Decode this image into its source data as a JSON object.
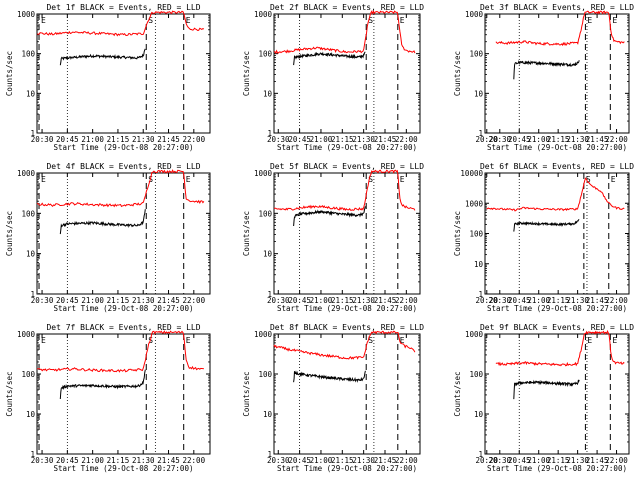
{
  "chart_data": {
    "type": "line",
    "panels": [
      {
        "title": "Det 1f BLACK = Events, RED = LLD",
        "xlabel": "Start Time (29-Oct-08 20:27:00)",
        "ylabel": "Counts/sec",
        "xlim": [
          20.45,
          22.16
        ],
        "ylim": [
          1,
          1000
        ],
        "xticks": [
          20.5,
          20.75,
          21.0,
          21.25,
          21.5,
          21.75,
          22.0
        ],
        "xtick_labels": [
          "20:30",
          "20:45",
          "21:00",
          "21:15",
          "21:30",
          "21:45",
          "22:00"
        ],
        "yticks": [
          1,
          10,
          100,
          1000
        ],
        "ytick_labels": [
          "1",
          "10",
          "100",
          "1000"
        ],
        "flags": [
          {
            "label": "E",
            "x": 20.47
          },
          {
            "label": "S",
            "x": 21.53
          },
          {
            "label": "E",
            "x": 21.9
          }
        ],
        "series": [
          {
            "name": "Events",
            "color": "#000000",
            "x": [
              20.68,
              20.69,
              20.75,
              21.0,
              21.25,
              21.45,
              21.5,
              21.52
            ],
            "y": [
              50,
              75,
              78,
              88,
              82,
              78,
              90,
              140
            ]
          },
          {
            "name": "LLD",
            "color": "#ff0000",
            "x": [
              20.45,
              20.6,
              20.8,
              21.0,
              21.3,
              21.5,
              21.55,
              21.59,
              21.9,
              21.92,
              21.95,
              22.0,
              22.1
            ],
            "y": [
              330,
              310,
              350,
              330,
              300,
              320,
              700,
              1100,
              1100,
              600,
              420,
              420,
              400
            ]
          }
        ]
      },
      {
        "title": "Det 2f BLACK = Events, RED = LLD",
        "xlabel": "Start Time (29-Oct-08 20:27:00)",
        "ylabel": "Counts/sec",
        "xlim": [
          20.45,
          22.16
        ],
        "ylim": [
          1,
          1000
        ],
        "xticks": [
          20.5,
          20.75,
          21.0,
          21.25,
          21.5,
          21.75,
          22.0
        ],
        "xtick_labels": [
          "20:30",
          "20:45",
          "21:00",
          "21:15",
          "21:30",
          "21:45",
          "22:00"
        ],
        "yticks": [
          1,
          10,
          100,
          1000
        ],
        "ytick_labels": [
          "1",
          "10",
          "100",
          "1000"
        ],
        "flags": [
          {
            "label": "S",
            "x": 21.53
          },
          {
            "label": "E",
            "x": 21.9
          }
        ],
        "series": [
          {
            "name": "Events",
            "color": "#000000",
            "x": [
              20.68,
              20.69,
              20.75,
              21.0,
              21.25,
              21.45,
              21.5,
              21.52
            ],
            "y": [
              50,
              80,
              85,
              100,
              88,
              82,
              90,
              110
            ]
          },
          {
            "name": "LLD",
            "color": "#ff0000",
            "x": [
              20.45,
              20.6,
              20.8,
              20.95,
              21.3,
              21.5,
              21.55,
              21.59,
              21.9,
              21.92,
              21.95,
              22.0,
              22.1
            ],
            "y": [
              110,
              115,
              130,
              140,
              110,
              115,
              600,
              1100,
              1100,
              400,
              150,
              120,
              110
            ]
          }
        ]
      },
      {
        "title": "Det 3f BLACK = Events, RED = LLD",
        "xlabel": "Start Time (29-Oct-08 20:27:00)",
        "ylabel": "Counts/sec",
        "xlim": [
          20.31,
          22.16
        ],
        "ylim": [
          1,
          1000
        ],
        "xticks": [
          20.333,
          20.5,
          20.75,
          21.0,
          21.25,
          21.5,
          21.75,
          22.0
        ],
        "xtick_labels": [
          "20:20",
          "20:30",
          "20:45",
          "21:00",
          "21:15",
          "21:30",
          "21:45",
          "22:00"
        ],
        "yticks": [
          1,
          10,
          100,
          1000
        ],
        "ytick_labels": [
          "1",
          "10",
          "100",
          "1000"
        ],
        "flags": [
          {
            "label": "E",
            "x": 21.6
          },
          {
            "label": "E",
            "x": 21.92
          }
        ],
        "series": [
          {
            "name": "Events",
            "color": "#000000",
            "x": [
              20.68,
              20.69,
              20.75,
              21.0,
              21.25,
              21.45,
              21.5,
              21.52
            ],
            "y": [
              22,
              55,
              60,
              58,
              55,
              52,
              58,
              70
            ]
          },
          {
            "name": "LLD",
            "color": "#ff0000",
            "x": [
              20.45,
              20.6,
              20.8,
              21.0,
              21.3,
              21.5,
              21.55,
              21.59,
              21.9,
              21.93,
              21.96,
              22.0,
              22.1
            ],
            "y": [
              190,
              185,
              200,
              180,
              175,
              185,
              450,
              1100,
              1100,
              350,
              220,
              200,
              190
            ]
          }
        ]
      },
      {
        "title": "Det 4f BLACK = Events, RED = LLD",
        "xlabel": "Start Time (29-Oct-08 20:27:00)",
        "ylabel": "Counts/sec",
        "xlim": [
          20.45,
          22.16
        ],
        "ylim": [
          1,
          1000
        ],
        "xticks": [
          20.5,
          20.75,
          21.0,
          21.25,
          21.5,
          21.75,
          22.0
        ],
        "xtick_labels": [
          "20:30",
          "20:45",
          "21:00",
          "21:15",
          "21:30",
          "21:45",
          "22:00"
        ],
        "yticks": [
          1,
          10,
          100,
          1000
        ],
        "ytick_labels": [
          "1",
          "10",
          "100",
          "1000"
        ],
        "flags": [
          {
            "label": "E",
            "x": 20.47
          },
          {
            "label": "S",
            "x": 21.53
          },
          {
            "label": "E",
            "x": 21.9
          }
        ],
        "series": [
          {
            "name": "Events",
            "color": "#000000",
            "x": [
              20.68,
              20.69,
              20.75,
              21.0,
              21.25,
              21.45,
              21.5,
              21.52
            ],
            "y": [
              30,
              50,
              55,
              58,
              52,
              50,
              60,
              120
            ]
          },
          {
            "name": "LLD",
            "color": "#ff0000",
            "x": [
              20.45,
              20.6,
              20.8,
              21.0,
              21.3,
              21.5,
              21.55,
              21.59,
              21.9,
              21.92,
              21.95,
              22.0,
              22.1
            ],
            "y": [
              170,
              160,
              175,
              165,
              155,
              175,
              500,
              1100,
              1100,
              250,
              210,
              200,
              190
            ]
          }
        ]
      },
      {
        "title": "Det 5f BLACK = Events, RED = LLD",
        "xlabel": "Start Time (29-Oct-08 20:27:00)",
        "ylabel": "Counts/sec",
        "xlim": [
          20.45,
          22.16
        ],
        "ylim": [
          1,
          1000
        ],
        "xticks": [
          20.5,
          20.75,
          21.0,
          21.25,
          21.5,
          21.75,
          22.0
        ],
        "xtick_labels": [
          "20:30",
          "20:45",
          "21:00",
          "21:15",
          "21:30",
          "21:45",
          "22:00"
        ],
        "yticks": [
          1,
          10,
          100,
          1000
        ],
        "ytick_labels": [
          "1",
          "10",
          "100",
          "1000"
        ],
        "flags": [
          {
            "label": "S",
            "x": 21.53
          },
          {
            "label": "E",
            "x": 21.9
          }
        ],
        "series": [
          {
            "name": "Events",
            "color": "#000000",
            "x": [
              20.68,
              20.69,
              20.75,
              21.0,
              21.25,
              21.45,
              21.5,
              21.52
            ],
            "y": [
              50,
              85,
              95,
              110,
              95,
              90,
              100,
              140
            ]
          },
          {
            "name": "LLD",
            "color": "#ff0000",
            "x": [
              20.45,
              20.6,
              20.8,
              20.95,
              21.3,
              21.5,
              21.55,
              21.59,
              21.9,
              21.92,
              21.95,
              22.0,
              22.1
            ],
            "y": [
              130,
              125,
              140,
              150,
              125,
              130,
              500,
              1100,
              1100,
              250,
              160,
              140,
              125
            ]
          }
        ]
      },
      {
        "title": "Det 6f BLACK = Events, RED = LLD",
        "xlabel": "Start Time (29-Oct-08 20:27:00)",
        "ylabel": "Counts/sec",
        "xlim": [
          20.31,
          22.16
        ],
        "ylim": [
          1,
          10000
        ],
        "xticks": [
          20.333,
          20.5,
          20.75,
          21.0,
          21.25,
          21.5,
          21.75,
          22.0
        ],
        "xtick_labels": [
          "20:20",
          "20:30",
          "20:45",
          "21:00",
          "21:15",
          "21:30",
          "21:45",
          "22:00"
        ],
        "yticks": [
          1,
          10,
          100,
          1000,
          10000
        ],
        "ytick_labels": [
          "1",
          "10",
          "100",
          "1000",
          "10000"
        ],
        "flags": [
          {
            "label": "S",
            "x": 21.58
          },
          {
            "label": "E",
            "x": 21.9
          }
        ],
        "series": [
          {
            "name": "Events",
            "color": "#000000",
            "x": [
              20.68,
              20.69,
              20.75,
              21.0,
              21.25,
              21.45,
              21.5,
              21.52
            ],
            "y": [
              120,
              200,
              220,
              210,
              200,
              210,
              250,
              300
            ]
          },
          {
            "name": "LLD",
            "color": "#ff0000",
            "x": [
              20.33,
              20.5,
              20.7,
              20.8,
              21.0,
              21.3,
              21.5,
              21.55,
              21.6,
              21.65,
              21.7,
              21.75,
              21.8,
              21.85,
              21.9,
              21.95,
              22.0,
              22.1
            ],
            "y": [
              700,
              650,
              600,
              700,
              650,
              620,
              650,
              2000,
              7000,
              4500,
              3500,
              3000,
              2500,
              1500,
              1000,
              800,
              700,
              650
            ]
          }
        ]
      },
      {
        "title": "Det 7f BLACK = Events, RED = LLD",
        "xlabel": "Start Time (29-Oct-08 20:27:00)",
        "ylabel": "Counts/sec",
        "xlim": [
          20.45,
          22.16
        ],
        "ylim": [
          1,
          1000
        ],
        "xticks": [
          20.5,
          20.75,
          21.0,
          21.25,
          21.5,
          21.75,
          22.0
        ],
        "xtick_labels": [
          "20:30",
          "20:45",
          "21:00",
          "21:15",
          "21:30",
          "21:45",
          "22:00"
        ],
        "yticks": [
          1,
          10,
          100,
          1000
        ],
        "ytick_labels": [
          "1",
          "10",
          "100",
          "1000"
        ],
        "flags": [
          {
            "label": "E",
            "x": 20.47
          },
          {
            "label": "S",
            "x": 21.53
          },
          {
            "label": "E",
            "x": 21.9
          }
        ],
        "series": [
          {
            "name": "Events",
            "color": "#000000",
            "x": [
              20.68,
              20.69,
              20.75,
              21.0,
              21.25,
              21.45,
              21.5,
              21.52
            ],
            "y": [
              25,
              45,
              50,
              52,
              48,
              50,
              60,
              130
            ]
          },
          {
            "name": "LLD",
            "color": "#ff0000",
            "x": [
              20.45,
              20.6,
              20.8,
              21.0,
              21.3,
              21.5,
              21.55,
              21.59,
              21.9,
              21.92,
              21.95,
              22.0,
              22.1
            ],
            "y": [
              130,
              125,
              135,
              125,
              120,
              130,
              500,
              1100,
              1100,
              250,
              150,
              140,
              130
            ]
          }
        ]
      },
      {
        "title": "Det 8f BLACK = Events, RED = LLD",
        "xlabel": "Start Time (29-Oct-08 20:27:00)",
        "ylabel": "Counts/sec",
        "xlim": [
          20.45,
          22.16
        ],
        "ylim": [
          1,
          1000
        ],
        "xticks": [
          20.5,
          20.75,
          21.0,
          21.25,
          21.5,
          21.75,
          22.0
        ],
        "xtick_labels": [
          "20:30",
          "20:45",
          "21:00",
          "21:15",
          "21:30",
          "21:45",
          "22:00"
        ],
        "yticks": [
          1,
          10,
          100,
          1000
        ],
        "ytick_labels": [
          "1",
          "10",
          "100",
          "1000"
        ],
        "flags": [
          {
            "label": "S",
            "x": 21.53
          },
          {
            "label": "E",
            "x": 21.9
          }
        ],
        "series": [
          {
            "name": "Events",
            "color": "#000000",
            "x": [
              20.68,
              20.69,
              20.75,
              21.0,
              21.25,
              21.45,
              21.5,
              21.52
            ],
            "y": [
              60,
              110,
              100,
              85,
              75,
              70,
              75,
              120
            ]
          },
          {
            "name": "LLD",
            "color": "#ff0000",
            "x": [
              20.45,
              20.6,
              20.8,
              21.0,
              21.3,
              21.5,
              21.55,
              21.59,
              21.9,
              21.93,
              21.98,
              22.05,
              22.1
            ],
            "y": [
              500,
              420,
              350,
              300,
              250,
              260,
              700,
              1100,
              1100,
              600,
              500,
              450,
              350
            ]
          }
        ]
      },
      {
        "title": "Det 9f BLACK = Events, RED = LLD",
        "xlabel": "Start Time (29-Oct-08 20:27:00)",
        "ylabel": "Counts/sec",
        "xlim": [
          20.31,
          22.16
        ],
        "ylim": [
          1,
          1000
        ],
        "xticks": [
          20.333,
          20.5,
          20.75,
          21.0,
          21.25,
          21.5,
          21.75,
          22.0
        ],
        "xtick_labels": [
          "20:20",
          "20:30",
          "20:45",
          "21:00",
          "21:15",
          "21:30",
          "21:45",
          "22:00"
        ],
        "yticks": [
          1,
          10,
          100,
          1000
        ],
        "ytick_labels": [
          "1",
          "10",
          "100",
          "1000"
        ],
        "flags": [
          {
            "label": "E",
            "x": 21.6
          },
          {
            "label": "E",
            "x": 21.92
          }
        ],
        "series": [
          {
            "name": "Events",
            "color": "#000000",
            "x": [
              20.68,
              20.69,
              20.75,
              21.0,
              21.25,
              21.45,
              21.5,
              21.52
            ],
            "y": [
              25,
              55,
              60,
              62,
              58,
              55,
              60,
              75
            ]
          },
          {
            "name": "LLD",
            "color": "#ff0000",
            "x": [
              20.45,
              20.6,
              20.8,
              21.0,
              21.3,
              21.5,
              21.55,
              21.59,
              21.9,
              21.93,
              21.96,
              22.0,
              22.1
            ],
            "y": [
              180,
              175,
              190,
              180,
              170,
              180,
              450,
              1100,
              1100,
              300,
              200,
              190,
              180
            ]
          }
        ]
      }
    ]
  }
}
